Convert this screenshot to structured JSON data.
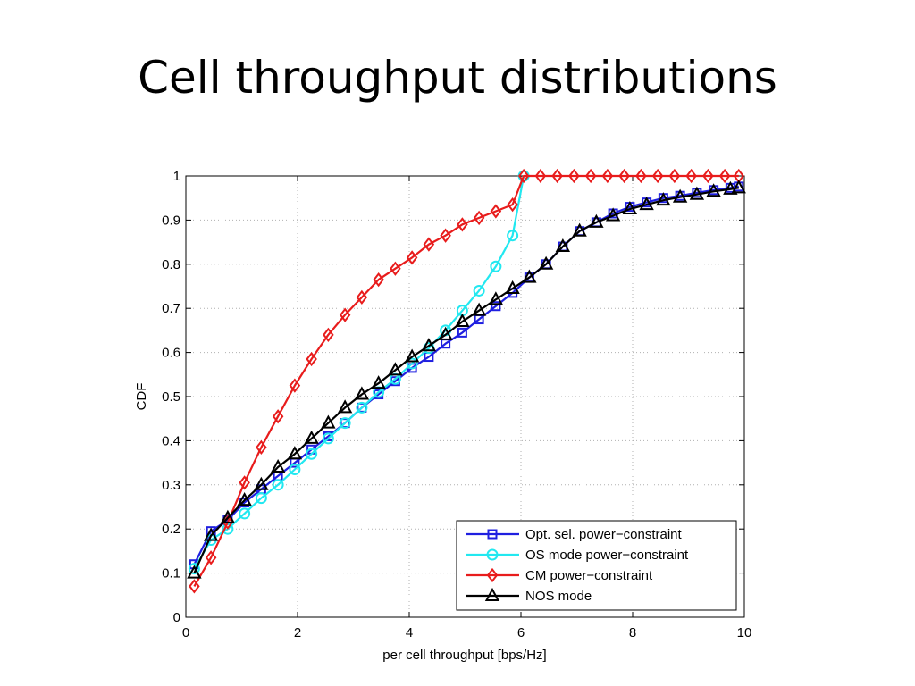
{
  "slide": {
    "title": "Cell throughput distributions"
  },
  "colors": {
    "opt_sel": "#1f1fe0",
    "os_mode": "#22e8f0",
    "cm": "#e81c1c",
    "nos": "#000000",
    "grid": "#b0b0b0"
  },
  "chart_data": {
    "type": "line",
    "title": "",
    "xlabel": "per cell throughput [bps/Hz]",
    "ylabel": "CDF",
    "xlim": [
      0,
      10
    ],
    "ylim": [
      0,
      1
    ],
    "xticks": [
      0,
      2,
      4,
      6,
      8,
      10
    ],
    "yticks": [
      0,
      0.1,
      0.2,
      0.3,
      0.4,
      0.5,
      0.6,
      0.7,
      0.8,
      0.9,
      1
    ],
    "grid": true,
    "legend_position": "bottom-right",
    "series": [
      {
        "name": "Opt. sel. power−constraint",
        "color": "#1f1fe0",
        "marker": "square",
        "x": [
          0.15,
          0.45,
          0.75,
          1.05,
          1.35,
          1.65,
          1.95,
          2.25,
          2.55,
          2.85,
          3.15,
          3.45,
          3.75,
          4.05,
          4.35,
          4.65,
          4.95,
          5.25,
          5.55,
          5.85,
          6.15,
          6.45,
          6.75,
          7.05,
          7.35,
          7.65,
          7.95,
          8.25,
          8.55,
          8.85,
          9.15,
          9.45,
          9.75,
          9.9
        ],
        "y": [
          0.12,
          0.195,
          0.22,
          0.26,
          0.29,
          0.32,
          0.35,
          0.38,
          0.41,
          0.44,
          0.475,
          0.505,
          0.535,
          0.565,
          0.59,
          0.62,
          0.645,
          0.675,
          0.705,
          0.735,
          0.77,
          0.8,
          0.84,
          0.875,
          0.895,
          0.915,
          0.93,
          0.94,
          0.95,
          0.955,
          0.962,
          0.968,
          0.973,
          0.976
        ]
      },
      {
        "name": "OS mode power−constraint",
        "color": "#22e8f0",
        "marker": "circle",
        "x": [
          0.15,
          0.45,
          0.75,
          1.05,
          1.35,
          1.65,
          1.95,
          2.25,
          2.55,
          2.85,
          3.15,
          3.45,
          3.75,
          4.05,
          4.35,
          4.65,
          4.95,
          5.25,
          5.55,
          5.85,
          6.05
        ],
        "y": [
          0.11,
          0.175,
          0.2,
          0.235,
          0.27,
          0.3,
          0.335,
          0.37,
          0.405,
          0.44,
          0.475,
          0.51,
          0.54,
          0.575,
          0.61,
          0.65,
          0.695,
          0.74,
          0.795,
          0.865,
          1.0
        ]
      },
      {
        "name": "CM power−constraint",
        "color": "#e81c1c",
        "marker": "diamond",
        "x": [
          0.15,
          0.45,
          0.75,
          1.05,
          1.35,
          1.65,
          1.95,
          2.25,
          2.55,
          2.85,
          3.15,
          3.45,
          3.75,
          4.05,
          4.35,
          4.65,
          4.95,
          5.25,
          5.55,
          5.85,
          6.05,
          6.35,
          6.65,
          6.95,
          7.25,
          7.55,
          7.85,
          8.15,
          8.45,
          8.75,
          9.05,
          9.35,
          9.65,
          9.9
        ],
        "y": [
          0.07,
          0.135,
          0.215,
          0.305,
          0.385,
          0.455,
          0.525,
          0.585,
          0.64,
          0.685,
          0.725,
          0.765,
          0.79,
          0.815,
          0.845,
          0.865,
          0.89,
          0.905,
          0.92,
          0.935,
          1.0,
          1.0,
          1.0,
          1.0,
          1.0,
          1.0,
          1.0,
          1.0,
          1.0,
          1.0,
          1.0,
          1.0,
          1.0,
          1.0
        ]
      },
      {
        "name": "NOS mode",
        "color": "#000000",
        "marker": "triangle",
        "x": [
          0.15,
          0.45,
          0.75,
          1.05,
          1.35,
          1.65,
          1.95,
          2.25,
          2.55,
          2.85,
          3.15,
          3.45,
          3.75,
          4.05,
          4.35,
          4.65,
          4.95,
          5.25,
          5.55,
          5.85,
          6.15,
          6.45,
          6.75,
          7.05,
          7.35,
          7.65,
          7.95,
          8.25,
          8.55,
          8.85,
          9.15,
          9.45,
          9.75,
          9.9
        ],
        "y": [
          0.1,
          0.185,
          0.225,
          0.265,
          0.3,
          0.34,
          0.37,
          0.405,
          0.44,
          0.475,
          0.505,
          0.53,
          0.56,
          0.59,
          0.615,
          0.64,
          0.67,
          0.695,
          0.72,
          0.745,
          0.77,
          0.8,
          0.84,
          0.875,
          0.895,
          0.91,
          0.925,
          0.935,
          0.945,
          0.952,
          0.958,
          0.965,
          0.97,
          0.973
        ]
      }
    ]
  }
}
